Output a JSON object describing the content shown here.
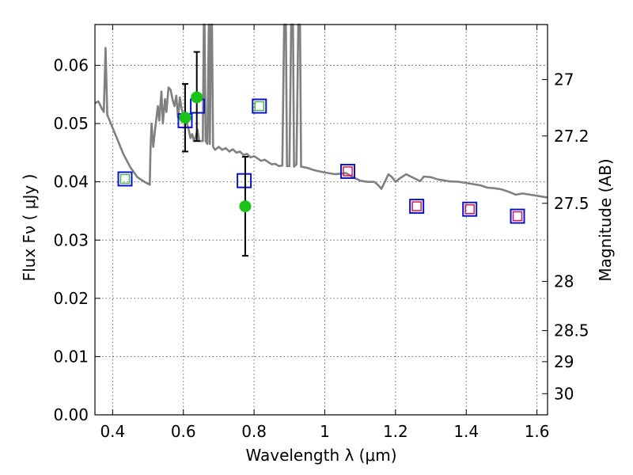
{
  "chart_data": {
    "type": "scatter",
    "title": "",
    "xlabel": "Wavelength  λ (μm)",
    "ylabel": "Flux  Fν  ( μJy )",
    "y2label": "Magnitude (AB)",
    "xlim": [
      0.35,
      1.63
    ],
    "ylim": [
      0.0,
      0.067
    ],
    "grid": true,
    "x_ticks": [
      {
        "value": 0.4,
        "label": "0.4"
      },
      {
        "value": 0.6,
        "label": "0.6"
      },
      {
        "value": 0.8,
        "label": "0.8"
      },
      {
        "value": 1.0,
        "label": "1"
      },
      {
        "value": 1.2,
        "label": "1.2"
      },
      {
        "value": 1.4,
        "label": "1.4"
      },
      {
        "value": 1.6,
        "label": "1.6"
      }
    ],
    "y_ticks": [
      {
        "value": 0.0,
        "label": "0.00"
      },
      {
        "value": 0.01,
        "label": "0.01"
      },
      {
        "value": 0.02,
        "label": "0.02"
      },
      {
        "value": 0.03,
        "label": "0.03"
      },
      {
        "value": 0.04,
        "label": "0.04"
      },
      {
        "value": 0.05,
        "label": "0.05"
      },
      {
        "value": 0.06,
        "label": "0.06"
      }
    ],
    "y2_ticks": [
      {
        "value": 27.0,
        "label": "27"
      },
      {
        "value": 27.2,
        "label": "27.2"
      },
      {
        "value": 27.5,
        "label": "27.5"
      },
      {
        "value": 28.0,
        "label": "28"
      },
      {
        "value": 28.5,
        "label": "28.5"
      },
      {
        "value": 29.0,
        "label": "29"
      },
      {
        "value": 30.0,
        "label": "30"
      }
    ],
    "model_sed": {
      "color": "#808080",
      "points": [
        [
          0.35,
          0.0535
        ],
        [
          0.36,
          0.0538
        ],
        [
          0.37,
          0.0525
        ],
        [
          0.375,
          0.052
        ],
        [
          0.38,
          0.063
        ],
        [
          0.385,
          0.0515
        ],
        [
          0.395,
          0.05
        ],
        [
          0.41,
          0.0478
        ],
        [
          0.43,
          0.0448
        ],
        [
          0.45,
          0.0425
        ],
        [
          0.47,
          0.0408
        ],
        [
          0.49,
          0.04
        ],
        [
          0.505,
          0.0395
        ],
        [
          0.507,
          0.0455
        ],
        [
          0.51,
          0.05
        ],
        [
          0.515,
          0.046
        ],
        [
          0.52,
          0.049
        ],
        [
          0.528,
          0.053
        ],
        [
          0.532,
          0.0505
        ],
        [
          0.538,
          0.0555
        ],
        [
          0.542,
          0.05
        ],
        [
          0.548,
          0.0542
        ],
        [
          0.552,
          0.052
        ],
        [
          0.558,
          0.0562
        ],
        [
          0.564,
          0.0558
        ],
        [
          0.57,
          0.054
        ],
        [
          0.575,
          0.053
        ],
        [
          0.58,
          0.0548
        ],
        [
          0.585,
          0.051
        ],
        [
          0.59,
          0.0545
        ],
        [
          0.595,
          0.0525
        ],
        [
          0.6,
          0.0515
        ],
        [
          0.605,
          0.0505
        ],
        [
          0.61,
          0.05
        ],
        [
          0.615,
          0.049
        ],
        [
          0.62,
          0.0475
        ],
        [
          0.625,
          0.0482
        ],
        [
          0.63,
          0.047
        ],
        [
          0.635,
          0.0478
        ],
        [
          0.64,
          0.049
        ],
        [
          0.645,
          0.047
        ],
        [
          0.65,
          0.047
        ],
        [
          0.655,
          0.047
        ],
        [
          0.658,
          0.067
        ],
        [
          0.66,
          0.067
        ],
        [
          0.663,
          0.047
        ],
        [
          0.668,
          0.0465
        ],
        [
          0.672,
          0.067
        ],
        [
          0.675,
          0.0465
        ],
        [
          0.678,
          0.067
        ],
        [
          0.681,
          0.067
        ],
        [
          0.684,
          0.046
        ],
        [
          0.69,
          0.0455
        ],
        [
          0.7,
          0.046
        ],
        [
          0.71,
          0.0455
        ],
        [
          0.72,
          0.0458
        ],
        [
          0.73,
          0.0452
        ],
        [
          0.74,
          0.0456
        ],
        [
          0.75,
          0.045
        ],
        [
          0.76,
          0.0452
        ],
        [
          0.77,
          0.0446
        ],
        [
          0.78,
          0.0448
        ],
        [
          0.79,
          0.0442
        ],
        [
          0.8,
          0.0444
        ],
        [
          0.81,
          0.044
        ],
        [
          0.82,
          0.0436
        ],
        [
          0.83,
          0.0438
        ],
        [
          0.84,
          0.0434
        ],
        [
          0.85,
          0.043
        ],
        [
          0.86,
          0.0431
        ],
        [
          0.87,
          0.0427
        ],
        [
          0.88,
          0.0428
        ],
        [
          0.885,
          0.067
        ],
        [
          0.89,
          0.067
        ],
        [
          0.893,
          0.0427
        ],
        [
          0.9,
          0.0427
        ],
        [
          0.905,
          0.067
        ],
        [
          0.91,
          0.067
        ],
        [
          0.913,
          0.0426
        ],
        [
          0.92,
          0.043
        ],
        [
          0.925,
          0.067
        ],
        [
          0.93,
          0.067
        ],
        [
          0.933,
          0.0426
        ],
        [
          0.95,
          0.0424
        ],
        [
          0.97,
          0.042
        ],
        [
          1.0,
          0.0416
        ],
        [
          1.03,
          0.0413
        ],
        [
          1.06,
          0.0415
        ],
        [
          1.08,
          0.0408
        ],
        [
          1.1,
          0.0402
        ],
        [
          1.12,
          0.04
        ],
        [
          1.14,
          0.04
        ],
        [
          1.15,
          0.0395
        ],
        [
          1.16,
          0.0388
        ],
        [
          1.17,
          0.04
        ],
        [
          1.18,
          0.0413
        ],
        [
          1.19,
          0.0408
        ],
        [
          1.2,
          0.04
        ],
        [
          1.21,
          0.0405
        ],
        [
          1.23,
          0.0413
        ],
        [
          1.24,
          0.041
        ],
        [
          1.25,
          0.0407
        ],
        [
          1.27,
          0.0401
        ],
        [
          1.28,
          0.0409
        ],
        [
          1.3,
          0.0408
        ],
        [
          1.32,
          0.0404
        ],
        [
          1.35,
          0.0401
        ],
        [
          1.38,
          0.04
        ],
        [
          1.4,
          0.0398
        ],
        [
          1.42,
          0.0396
        ],
        [
          1.44,
          0.0394
        ],
        [
          1.46,
          0.039
        ],
        [
          1.48,
          0.0389
        ],
        [
          1.5,
          0.0387
        ],
        [
          1.52,
          0.0383
        ],
        [
          1.54,
          0.0378
        ],
        [
          1.56,
          0.038
        ],
        [
          1.58,
          0.0378
        ],
        [
          1.6,
          0.0376
        ],
        [
          1.63,
          0.0373
        ]
      ]
    },
    "observed": {
      "color": "#19c319",
      "points": [
        {
          "x": 0.605,
          "y": 0.051,
          "err_lo": 0.0058,
          "err_hi": 0.0058
        },
        {
          "x": 0.638,
          "y": 0.0545,
          "err_lo": 0.0075,
          "err_hi": 0.0078
        },
        {
          "x": 0.775,
          "y": 0.0358,
          "err_lo": 0.0085,
          "err_hi": 0.0085
        }
      ]
    },
    "model_photometry": {
      "color": "#0b14c8",
      "points": [
        {
          "x": 0.435,
          "y": 0.0405
        },
        {
          "x": 0.605,
          "y": 0.0505
        },
        {
          "x": 0.64,
          "y": 0.053
        },
        {
          "x": 0.772,
          "y": 0.0402
        },
        {
          "x": 0.815,
          "y": 0.053
        },
        {
          "x": 1.065,
          "y": 0.0418
        },
        {
          "x": 1.26,
          "y": 0.0358
        },
        {
          "x": 1.41,
          "y": 0.0353
        },
        {
          "x": 1.545,
          "y": 0.0341
        }
      ]
    },
    "inner_markers": {
      "points": [
        {
          "x": 0.435,
          "y": 0.0405,
          "color": "#4db84d"
        },
        {
          "x": 0.815,
          "y": 0.053,
          "color": "#4db84d"
        },
        {
          "x": 1.065,
          "y": 0.0418,
          "color": "#d4145a"
        },
        {
          "x": 1.26,
          "y": 0.0358,
          "color": "#d4145a"
        },
        {
          "x": 1.41,
          "y": 0.0353,
          "color": "#d4145a"
        },
        {
          "x": 1.545,
          "y": 0.0341,
          "color": "#d4145a"
        }
      ]
    }
  }
}
